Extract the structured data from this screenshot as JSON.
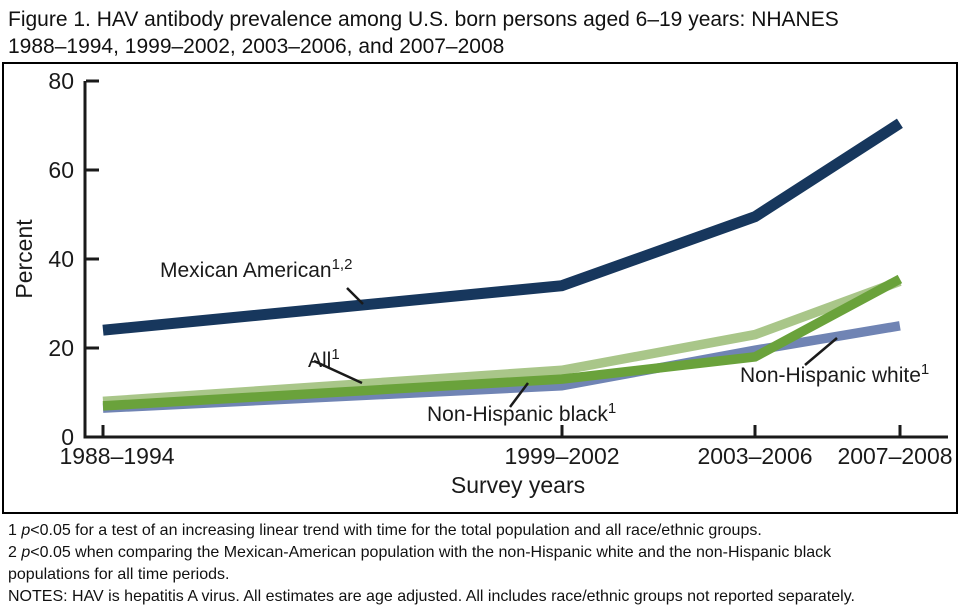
{
  "figure": {
    "title_line1": "Figure 1. HAV antibody prevalence among U.S. born persons aged 6–19 years: NHANES",
    "title_line2": "1988–1994, 1999–2002, 2003–2006, and 2007–2008"
  },
  "chart_data": {
    "type": "line",
    "title": "HAV antibody prevalence among U.S. born persons aged 6–19 years: NHANES 1988–1994, 1999–2002, 2003–2006, and 2007–2008",
    "xlabel": "Survey years",
    "ylabel": "Percent",
    "ylim": [
      0,
      80
    ],
    "yticks": [
      "0",
      "20",
      "40",
      "60",
      "80"
    ],
    "categories": [
      "1988–1994",
      "1999–2002",
      "2003–2006",
      "2007–2008"
    ],
    "category_mid_years": [
      1991,
      2000.5,
      2004.5,
      2007.5
    ],
    "grid": false,
    "legend_position": "inline-labels",
    "series": [
      {
        "name": "Mexican American",
        "footnote_sup": "1,2",
        "color": "#17375d",
        "stroke_width": 11,
        "values": [
          24,
          34,
          49.5,
          70.5
        ]
      },
      {
        "name": "All",
        "footnote_sup": "1",
        "color": "#a9c689",
        "stroke_width": 9.5,
        "values": [
          8,
          15,
          23,
          35
        ]
      },
      {
        "name": "Non-Hispanic black",
        "footnote_sup": "1",
        "color": "#6aa23b",
        "stroke_width": 9.5,
        "values": [
          7,
          13,
          18,
          35.5
        ]
      },
      {
        "name": "Non-Hispanic white",
        "footnote_sup": "1",
        "color": "#7084b4",
        "stroke_width": 9.5,
        "values": [
          6.5,
          11.5,
          19.5,
          25
        ]
      }
    ]
  },
  "footnotes": {
    "note1_num": "1 ",
    "note1_p": "p",
    "note1_rest": "<0.05 for a test of an increasing linear trend with time for the total population and all race/ethnic groups.",
    "note2_num": "2  ",
    "note2_p": "p",
    "note2_rest": "<0.05 when comparing the Mexican-American population with the non-Hispanic white and the non-Hispanic black",
    "note2_cont": "populations for all time periods.",
    "notes_line": "NOTES: HAV is hepatitis A virus. All estimates are age adjusted. All includes race/ethnic groups not reported separately."
  }
}
